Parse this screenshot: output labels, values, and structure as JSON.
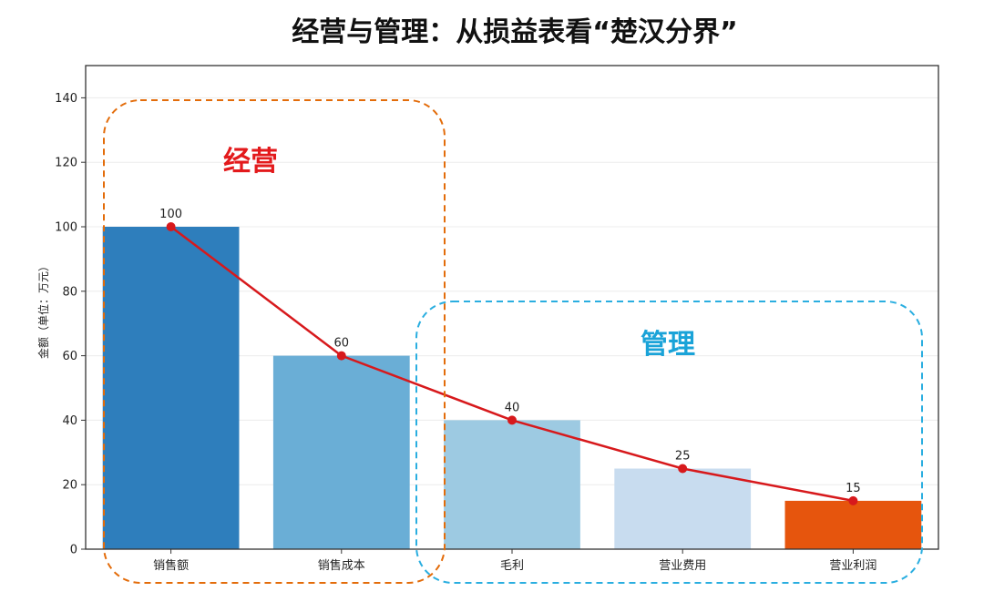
{
  "chart_data": {
    "type": "bar",
    "title": "经营与管理：从损益表看“楚汉分界”",
    "xlabel": "",
    "ylabel": "金额（单位：万元）",
    "ylim": [
      0,
      150
    ],
    "yticks": [
      0,
      20,
      40,
      60,
      80,
      100,
      120,
      140
    ],
    "grid": true,
    "categories": [
      "销售额",
      "销售成本",
      "毛利",
      "营业费用",
      "营业利润"
    ],
    "values": [
      100,
      60,
      40,
      25,
      15
    ],
    "value_labels": [
      "100",
      "60",
      "40",
      "25",
      "15"
    ],
    "bar_colors": [
      "#2e7ebc",
      "#6aaed6",
      "#9dcae2",
      "#c8dcef",
      "#e6550d"
    ],
    "line_overlay": {
      "values": [
        100,
        60,
        40,
        25,
        15
      ],
      "color": "#d7191c"
    },
    "annotations": [
      {
        "label": "经营",
        "color": "#e31a1c",
        "box_color": "#e36c0a",
        "covers": [
          "销售额",
          "销售成本"
        ]
      },
      {
        "label": "管理",
        "color": "#1aa3d8",
        "box_color": "#2aaee0",
        "covers": [
          "毛利",
          "营业费用",
          "营业利润"
        ]
      }
    ]
  }
}
